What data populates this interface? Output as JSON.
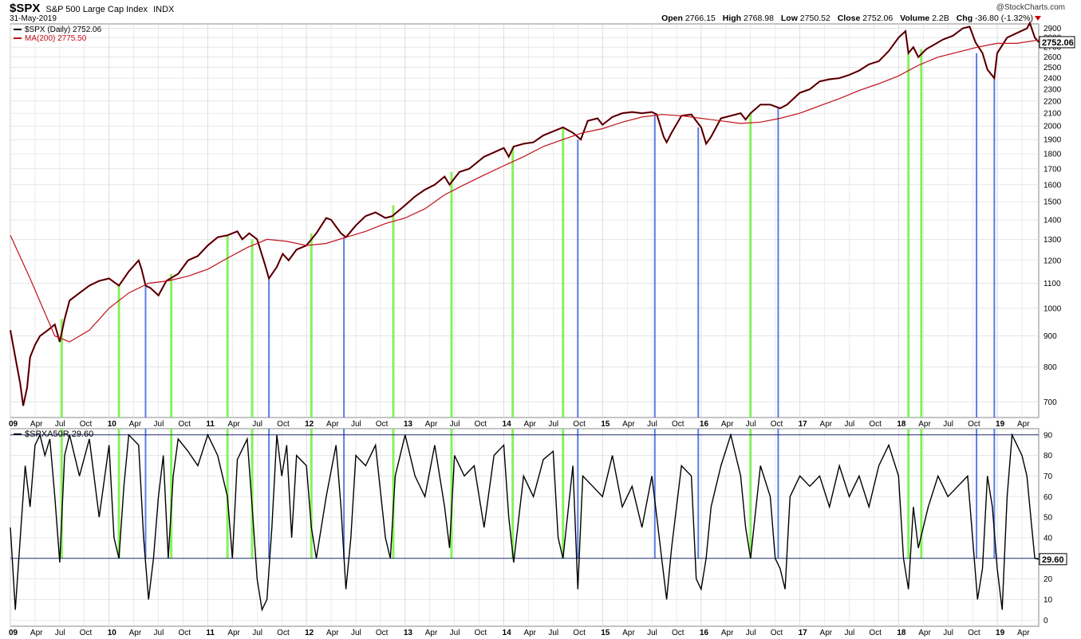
{
  "header": {
    "symbol": "$SPX",
    "name": "S&P 500 Large Cap Index",
    "exchange": "INDX",
    "date": "31-May-2019",
    "brand": "@StockCharts.com",
    "open_label": "Open",
    "open": "2766.15",
    "high_label": "High",
    "high": "2768.98",
    "low_label": "Low",
    "low": "2750.52",
    "close_label": "Close",
    "close": "2752.06",
    "volume_label": "Volume",
    "volume": "2.2B",
    "chg_label": "Chg",
    "chg": "-36.80 (-1.32%)"
  },
  "colors": {
    "price": "#000000",
    "up_down": "#c0101a",
    "ma": "#c0101a",
    "green_line": "#7cf04a",
    "blue_line": "#4a6fe0",
    "grid": "#d8d8d8"
  },
  "chart_data": [
    {
      "type": "line",
      "legend": [
        {
          "label": "$SPX (Daily) 2752.06",
          "color": "#000000"
        },
        {
          "label": "MA(200) 2775.50",
          "color": "#c0101a"
        }
      ],
      "scale": "log",
      "ylim": [
        660,
        2950
      ],
      "y_ticks": [
        700,
        800,
        900,
        1000,
        1100,
        1200,
        1300,
        1400,
        1500,
        1600,
        1700,
        1800,
        1900,
        2000,
        2100,
        2200,
        2300,
        2400,
        2500,
        2600,
        2700,
        2800,
        2900
      ],
      "last_value_label": "2752.06",
      "x_ticks": [
        "09",
        "Apr",
        "Jul",
        "Oct",
        "10",
        "Apr",
        "Jul",
        "Oct",
        "11",
        "Apr",
        "Jul",
        "Oct",
        "12",
        "Apr",
        "Jul",
        "Oct",
        "13",
        "Apr",
        "Jul",
        "Oct",
        "14",
        "Apr",
        "Jul",
        "Oct",
        "15",
        "Apr",
        "Jul",
        "Oct",
        "16",
        "Apr",
        "Jul",
        "Oct",
        "17",
        "Apr",
        "Jul",
        "Oct",
        "18",
        "Apr",
        "Jul",
        "Oct",
        "19",
        "Apr"
      ],
      "xlim": [
        2009.0,
        2019.42
      ],
      "series": [
        {
          "name": "$SPX (Daily)",
          "x": [
            2009.0,
            2009.05,
            2009.1,
            2009.13,
            2009.17,
            2009.2,
            2009.25,
            2009.3,
            2009.38,
            2009.45,
            2009.5,
            2009.55,
            2009.6,
            2009.7,
            2009.8,
            2009.9,
            2010.0,
            2010.1,
            2010.2,
            2010.3,
            2010.33,
            2010.37,
            2010.42,
            2010.5,
            2010.58,
            2010.7,
            2010.8,
            2010.9,
            2011.0,
            2011.1,
            2011.2,
            2011.3,
            2011.35,
            2011.42,
            2011.5,
            2011.58,
            2011.62,
            2011.7,
            2011.76,
            2011.82,
            2011.9,
            2012.0,
            2012.1,
            2012.2,
            2012.25,
            2012.35,
            2012.4,
            2012.5,
            2012.6,
            2012.7,
            2012.8,
            2012.87,
            2013.0,
            2013.1,
            2013.2,
            2013.3,
            2013.4,
            2013.45,
            2013.55,
            2013.65,
            2013.8,
            2013.9,
            2014.0,
            2014.05,
            2014.1,
            2014.2,
            2014.3,
            2014.4,
            2014.5,
            2014.6,
            2014.7,
            2014.78,
            2014.85,
            2014.95,
            2015.0,
            2015.1,
            2015.2,
            2015.3,
            2015.4,
            2015.5,
            2015.55,
            2015.62,
            2015.65,
            2015.7,
            2015.8,
            2015.9,
            2016.0,
            2016.05,
            2016.1,
            2016.2,
            2016.3,
            2016.4,
            2016.45,
            2016.5,
            2016.6,
            2016.7,
            2016.8,
            2016.87,
            2017.0,
            2017.1,
            2017.2,
            2017.3,
            2017.4,
            2017.5,
            2017.6,
            2017.7,
            2017.8,
            2017.9,
            2018.0,
            2018.07,
            2018.1,
            2018.15,
            2018.2,
            2018.28,
            2018.35,
            2018.45,
            2018.55,
            2018.65,
            2018.72,
            2018.78,
            2018.85,
            2018.9,
            2018.97,
            2019.0,
            2019.1,
            2019.2,
            2019.3,
            2019.33,
            2019.38,
            2019.42
          ],
          "values": [
            920,
            830,
            750,
            690,
            740,
            830,
            870,
            900,
            920,
            940,
            880,
            960,
            1030,
            1060,
            1090,
            1110,
            1120,
            1090,
            1150,
            1200,
            1160,
            1090,
            1080,
            1050,
            1110,
            1140,
            1200,
            1220,
            1270,
            1310,
            1320,
            1340,
            1300,
            1330,
            1300,
            1180,
            1120,
            1170,
            1230,
            1200,
            1250,
            1270,
            1330,
            1410,
            1400,
            1330,
            1310,
            1370,
            1420,
            1440,
            1410,
            1420,
            1480,
            1530,
            1570,
            1600,
            1650,
            1600,
            1680,
            1700,
            1780,
            1810,
            1840,
            1780,
            1850,
            1870,
            1880,
            1930,
            1960,
            1990,
            1950,
            1900,
            2040,
            2060,
            2010,
            2070,
            2100,
            2110,
            2100,
            2110,
            2090,
            1920,
            1880,
            1950,
            2080,
            2090,
            1990,
            1870,
            1920,
            2060,
            2080,
            2100,
            2050,
            2100,
            2170,
            2170,
            2140,
            2170,
            2270,
            2300,
            2370,
            2390,
            2400,
            2430,
            2470,
            2530,
            2560,
            2660,
            2800,
            2870,
            2640,
            2700,
            2600,
            2680,
            2720,
            2780,
            2820,
            2900,
            2920,
            2750,
            2640,
            2480,
            2400,
            2640,
            2800,
            2850,
            2900,
            2960,
            2800,
            2752
          ]
        },
        {
          "name": "MA(200)",
          "x": [
            2009.0,
            2009.2,
            2009.45,
            2009.6,
            2009.8,
            2010.0,
            2010.2,
            2010.4,
            2010.6,
            2010.8,
            2011.0,
            2011.2,
            2011.4,
            2011.6,
            2011.8,
            2012.0,
            2012.2,
            2012.4,
            2012.6,
            2012.8,
            2013.0,
            2013.2,
            2013.4,
            2013.6,
            2013.8,
            2014.0,
            2014.2,
            2014.4,
            2014.6,
            2014.8,
            2015.0,
            2015.2,
            2015.4,
            2015.6,
            2015.8,
            2016.0,
            2016.2,
            2016.4,
            2016.6,
            2016.8,
            2017.0,
            2017.2,
            2017.4,
            2017.6,
            2017.8,
            2018.0,
            2018.2,
            2018.4,
            2018.6,
            2018.8,
            2019.0,
            2019.2,
            2019.42
          ],
          "values": [
            1320,
            1120,
            900,
            880,
            920,
            1000,
            1060,
            1100,
            1110,
            1130,
            1160,
            1210,
            1260,
            1300,
            1290,
            1270,
            1280,
            1310,
            1340,
            1380,
            1410,
            1460,
            1540,
            1600,
            1660,
            1720,
            1780,
            1850,
            1900,
            1950,
            1980,
            2030,
            2070,
            2090,
            2080,
            2060,
            2040,
            2020,
            2030,
            2060,
            2100,
            2160,
            2220,
            2290,
            2350,
            2420,
            2520,
            2600,
            2650,
            2700,
            2740,
            2740,
            2775
          ]
        }
      ],
      "signal_lines_green": [
        2009.52,
        2010.1,
        2010.63,
        2011.2,
        2011.45,
        2012.05,
        2012.88,
        2013.47,
        2014.09,
        2014.6,
        2016.5,
        2018.1,
        2018.23
      ],
      "signal_lines_blue": [
        2010.37,
        2011.62,
        2012.38,
        2014.75,
        2015.53,
        2015.97,
        2016.78,
        2018.79,
        2018.97
      ]
    },
    {
      "type": "line",
      "legend": [
        {
          "label": "$SPXA50R 29.60",
          "color": "#000000"
        }
      ],
      "ylim": [
        -3,
        93
      ],
      "y_ticks": [
        0,
        10,
        20,
        30,
        40,
        50,
        60,
        70,
        80,
        90
      ],
      "reference_lines": [
        90,
        30
      ],
      "last_value_label": "29.60",
      "x_ticks": [
        "09",
        "Apr",
        "Jul",
        "Oct",
        "10",
        "Apr",
        "Jul",
        "Oct",
        "11",
        "Apr",
        "Jul",
        "Oct",
        "12",
        "Apr",
        "Jul",
        "Oct",
        "13",
        "Apr",
        "Jul",
        "Oct",
        "14",
        "Apr",
        "Jul",
        "Oct",
        "15",
        "Apr",
        "Jul",
        "Oct",
        "16",
        "Apr",
        "Jul",
        "Oct",
        "17",
        "Apr",
        "Jul",
        "Oct",
        "18",
        "Apr",
        "Jul",
        "Oct",
        "19",
        "Apr"
      ],
      "series": [
        {
          "name": "$SPXA50R",
          "x": [
            2009.0,
            2009.05,
            2009.1,
            2009.15,
            2009.2,
            2009.25,
            2009.3,
            2009.35,
            2009.4,
            2009.45,
            2009.5,
            2009.55,
            2009.6,
            2009.7,
            2009.8,
            2009.9,
            2010.0,
            2010.05,
            2010.1,
            2010.15,
            2010.2,
            2010.3,
            2010.35,
            2010.4,
            2010.45,
            2010.5,
            2010.55,
            2010.6,
            2010.65,
            2010.7,
            2010.8,
            2010.9,
            2011.0,
            2011.1,
            2011.2,
            2011.25,
            2011.3,
            2011.4,
            2011.45,
            2011.5,
            2011.55,
            2011.6,
            2011.65,
            2011.7,
            2011.75,
            2011.8,
            2011.85,
            2011.9,
            2012.0,
            2012.05,
            2012.1,
            2012.2,
            2012.3,
            2012.35,
            2012.4,
            2012.45,
            2012.5,
            2012.6,
            2012.7,
            2012.8,
            2012.85,
            2012.9,
            2013.0,
            2013.1,
            2013.2,
            2013.3,
            2013.4,
            2013.45,
            2013.5,
            2013.6,
            2013.7,
            2013.8,
            2013.9,
            2014.0,
            2014.05,
            2014.1,
            2014.2,
            2014.3,
            2014.4,
            2014.5,
            2014.55,
            2014.6,
            2014.7,
            2014.75,
            2014.8,
            2014.9,
            2015.0,
            2015.1,
            2015.2,
            2015.3,
            2015.4,
            2015.5,
            2015.55,
            2015.6,
            2015.65,
            2015.7,
            2015.8,
            2015.9,
            2015.95,
            2016.0,
            2016.05,
            2016.1,
            2016.2,
            2016.3,
            2016.4,
            2016.45,
            2016.5,
            2016.6,
            2016.7,
            2016.75,
            2016.8,
            2016.85,
            2016.9,
            2017.0,
            2017.1,
            2017.2,
            2017.3,
            2017.4,
            2017.5,
            2017.6,
            2017.7,
            2017.8,
            2017.9,
            2018.0,
            2018.05,
            2018.1,
            2018.15,
            2018.2,
            2018.25,
            2018.3,
            2018.4,
            2018.5,
            2018.6,
            2018.7,
            2018.75,
            2018.8,
            2018.85,
            2018.9,
            2018.95,
            2019.0,
            2019.05,
            2019.1,
            2019.15,
            2019.2,
            2019.25,
            2019.3,
            2019.35,
            2019.38,
            2019.42
          ],
          "values": [
            45,
            5,
            40,
            75,
            55,
            85,
            90,
            80,
            88,
            60,
            28,
            80,
            90,
            70,
            88,
            50,
            85,
            40,
            30,
            65,
            90,
            85,
            40,
            10,
            30,
            60,
            80,
            30,
            70,
            88,
            82,
            75,
            90,
            80,
            60,
            30,
            78,
            88,
            55,
            20,
            5,
            10,
            45,
            90,
            70,
            85,
            40,
            80,
            75,
            45,
            30,
            60,
            85,
            55,
            15,
            40,
            80,
            75,
            85,
            40,
            30,
            70,
            90,
            70,
            60,
            85,
            55,
            35,
            80,
            70,
            75,
            45,
            80,
            85,
            50,
            28,
            70,
            60,
            78,
            82,
            40,
            30,
            75,
            15,
            70,
            65,
            60,
            80,
            55,
            65,
            45,
            70,
            50,
            30,
            10,
            35,
            75,
            70,
            20,
            15,
            30,
            55,
            75,
            90,
            70,
            45,
            30,
            75,
            60,
            30,
            25,
            15,
            60,
            70,
            65,
            70,
            55,
            75,
            60,
            70,
            55,
            75,
            85,
            70,
            30,
            15,
            55,
            35,
            45,
            55,
            70,
            60,
            65,
            70,
            40,
            10,
            25,
            70,
            55,
            25,
            5,
            60,
            90,
            85,
            80,
            70,
            45,
            30,
            29.6
          ]
        }
      ]
    }
  ]
}
